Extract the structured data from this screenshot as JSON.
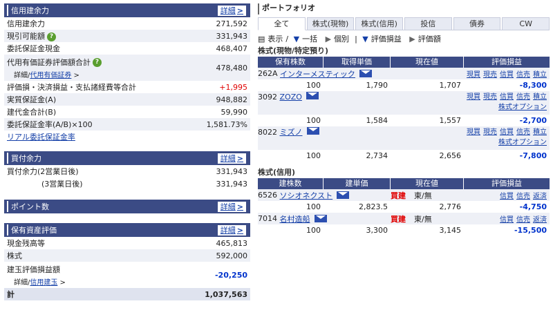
{
  "margin": {
    "title": "信用建余力",
    "more": "詳細",
    "rows": [
      {
        "label": "信用建余力",
        "value": "271,592"
      },
      {
        "label": "現引可能額",
        "value": "331,943"
      },
      {
        "label": "委託保証金現金",
        "value": "468,407"
      },
      {
        "label": "代用有価証券評価額合計",
        "value": "478,480",
        "sub_prefix": "詳細/",
        "sub_link": "代用有価証券"
      },
      {
        "label": "評価損・決済損益・支払諸経費等合計",
        "value": "+1,995"
      },
      {
        "label": "実質保証金(A)",
        "value": "948,882"
      },
      {
        "label": "建代金合計(B)",
        "value": "59,990"
      },
      {
        "label": "委託保証金率(A/B)×100",
        "value": "1,581.73%"
      }
    ],
    "link": "リアル委託保証金率"
  },
  "buying": {
    "title": "買付余力",
    "more": "詳細",
    "rows": [
      {
        "label": "買付余力(2営業日後)",
        "value": "331,943"
      },
      {
        "label": "(3営業日後)",
        "value": "331,943"
      }
    ]
  },
  "points": {
    "title": "ポイント数",
    "more": "詳細"
  },
  "assets": {
    "title": "保有資産評価",
    "more": "詳細",
    "rows": [
      {
        "label": "現金残高等",
        "value": "465,813"
      },
      {
        "label": "株式",
        "value": "592,000"
      }
    ],
    "eval_label": "建玉評価損益額",
    "eval_value": "-20,250",
    "eval_sub_prefix": "詳細/",
    "eval_sub_link": "信用建玉",
    "total_label": "計",
    "total_value": "1,037,563"
  },
  "portfolio": {
    "title": "ポートフォリオ",
    "tabs": [
      "全て",
      "株式(現物)",
      "株式(信用)",
      "投信",
      "債券",
      "CW"
    ],
    "controls": {
      "display": "表示",
      "all": "一括",
      "each": "個別",
      "pl": "評価損益",
      "amount": "評価額"
    },
    "spot": {
      "title": "株式(現物/特定預り)",
      "headers": [
        "保有株数",
        "取得単価",
        "現在値",
        "評価損益"
      ],
      "actions": [
        "現買",
        "現売",
        "信買",
        "信売",
        "積立"
      ],
      "option": "株式オプション",
      "items": [
        {
          "code": "262A",
          "name": "インターメスティック",
          "qty": "100",
          "cost": "1,790",
          "price": "1,707",
          "pl": "-8,300"
        },
        {
          "code": "3092",
          "name": "ZOZO",
          "qty": "100",
          "cost": "1,584",
          "price": "1,557",
          "pl": "-2,700"
        },
        {
          "code": "8022",
          "name": "ミズノ",
          "qty": "100",
          "cost": "2,734",
          "price": "2,656",
          "pl": "-7,800"
        }
      ]
    },
    "margin": {
      "title": "株式(信用)",
      "headers": [
        "建株数",
        "建単価",
        "現在値",
        "評価損益"
      ],
      "actions": [
        "信買",
        "信売",
        "返済"
      ],
      "items": [
        {
          "code": "6526",
          "name": "ソシオネクスト",
          "side": "買建",
          "market": "東/無",
          "qty": "100",
          "cost": "2,823.5",
          "price": "2,776",
          "pl": "-4,750"
        },
        {
          "code": "7014",
          "name": "名村造船",
          "side": "買建",
          "market": "東/無",
          "qty": "100",
          "cost": "3,300",
          "price": "3,145",
          "pl": "-15,500"
        }
      ]
    }
  }
}
